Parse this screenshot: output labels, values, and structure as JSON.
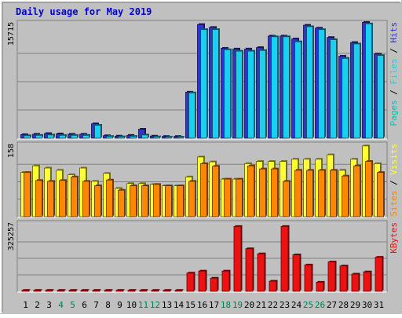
{
  "chart_data": {
    "type": "bar",
    "title": "Daily usage for May 2019",
    "categories": [
      "1",
      "2",
      "3",
      "4",
      "5",
      "6",
      "7",
      "8",
      "9",
      "10",
      "11",
      "12",
      "13",
      "14",
      "15",
      "16",
      "17",
      "18",
      "19",
      "20",
      "21",
      "22",
      "23",
      "24",
      "25",
      "26",
      "27",
      "28",
      "29",
      "30",
      "31"
    ],
    "weekend_days": [
      4,
      5,
      11,
      12,
      18,
      19,
      25,
      26
    ],
    "panels": [
      {
        "id": "hits",
        "ymax": 15715,
        "y_tick_label": "15715",
        "right_label_parts": [
          "Pages",
          "Files",
          "Hits"
        ],
        "right_label_separator": " / ",
        "series": [
          {
            "name": "Hits",
            "color": "#3333cc",
            "values": [
              500,
              550,
              650,
              600,
              550,
              550,
              2000,
              350,
              300,
              400,
              1250,
              300,
              250,
              250,
              6400,
              15800,
              15400,
              12500,
              12400,
              12400,
              12600,
              14200,
              14200,
              13800,
              15700,
              15300,
              14000,
              11400,
              13300,
              16100,
              11700
            ]
          },
          {
            "name": "Files",
            "color": "#1ad0f0",
            "values": [
              350,
              400,
              450,
              400,
              400,
              400,
              1800,
              250,
              200,
              250,
              450,
              200,
              150,
              150,
              6300,
              15100,
              15100,
              12300,
              12100,
              12100,
              12200,
              14100,
              14100,
              13400,
              15500,
              15100,
              13700,
              11100,
              13100,
              15900,
              11500
            ]
          }
        ]
      },
      {
        "id": "visits",
        "ymax": 158,
        "y_tick_label": "158",
        "right_label_parts": [
          "Sites",
          "Visits"
        ],
        "right_label_separator": " / ",
        "series": [
          {
            "name": "Visits",
            "color": "#ffff33",
            "values": [
              100,
              115,
              110,
              105,
              95,
              110,
              80,
              98,
              64,
              75,
              75,
              73,
              70,
              70,
              90,
              135,
              124,
              85,
              85,
              120,
              125,
              125,
              125,
              130,
              130,
              130,
              140,
              105,
              130,
              160,
              120
            ]
          },
          {
            "name": "Sites",
            "color": "#ff8800",
            "values": [
              100,
              82,
              80,
              82,
              90,
              80,
              70,
              83,
              60,
              70,
              70,
              73,
              70,
              70,
              80,
              120,
              114,
              85,
              85,
              115,
              108,
              108,
              80,
              105,
              105,
              105,
              105,
              92,
              115,
              125,
              100
            ]
          }
        ]
      },
      {
        "id": "kbytes",
        "ymax": 325257,
        "y_tick_label": "325257",
        "right_label_parts": [
          "KBytes"
        ],
        "right_label_separator": "",
        "series": [
          {
            "name": "KBytes",
            "color": "#ee1111",
            "values": [
              5000,
              5000,
              5000,
              5000,
              5000,
              5000,
              5000,
              5000,
              5000,
              5000,
              5000,
              5000,
              5000,
              5000,
              90000,
              100000,
              65000,
              100000,
              320000,
              210000,
              185000,
              50000,
              320000,
              180000,
              130000,
              45000,
              145000,
              125000,
              85000,
              96000,
              168000
            ]
          }
        ]
      }
    ],
    "colors": {
      "background": "#c0c0c0",
      "title": "#0000cc",
      "weekday_label": "#000000",
      "weekend_label": "#00804d",
      "grid": "#808080"
    }
  }
}
